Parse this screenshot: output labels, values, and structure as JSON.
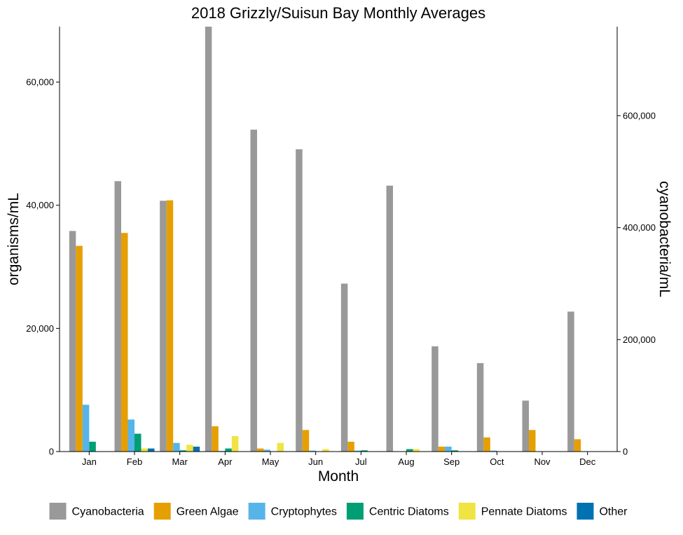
{
  "chart_data": {
    "type": "bar",
    "title": "2018 Grizzly/Suisun Bay Monthly Averages",
    "xlabel": "Month",
    "ylabel": "organisms/mL",
    "y2label": "cyanobacteria/mL",
    "ylim": [
      0,
      69000
    ],
    "y2lim": [
      0,
      759000
    ],
    "yticks": [
      0,
      20000,
      40000,
      60000
    ],
    "yticks_labels": [
      "0",
      "20,000",
      "40,000",
      "60,000"
    ],
    "y2ticks": [
      0,
      200000,
      400000,
      600000
    ],
    "y2ticks_labels": [
      "0",
      "200,000",
      "400,000",
      "600,000"
    ],
    "legend_position": "bottom",
    "grid": false,
    "categories": [
      "Jan",
      "Feb",
      "Mar",
      "Apr",
      "May",
      "Jun",
      "Jul",
      "Aug",
      "Sep",
      "Oct",
      "Nov",
      "Dec"
    ],
    "series": [
      {
        "name": "Cyanobacteria",
        "axis": "right",
        "color": "#999999",
        "values": [
          394000,
          483000,
          448000,
          760000,
          575000,
          540000,
          300000,
          475000,
          188000,
          158000,
          91000,
          250000
        ]
      },
      {
        "name": "Green Algae",
        "axis": "left",
        "color": "#E69F00",
        "values": [
          33400,
          35500,
          40800,
          4100,
          500,
          3500,
          1600,
          0,
          800,
          2300,
          3500,
          2000
        ]
      },
      {
        "name": "Cryptophytes",
        "axis": "left",
        "color": "#56B4E9",
        "values": [
          7600,
          5200,
          1400,
          100,
          300,
          150,
          150,
          0,
          800,
          150,
          0,
          0
        ]
      },
      {
        "name": "Centric Diatoms",
        "axis": "left",
        "color": "#009E73",
        "values": [
          1600,
          2900,
          200,
          500,
          0,
          0,
          200,
          400,
          200,
          0,
          0,
          0
        ]
      },
      {
        "name": "Pennate Diatoms",
        "axis": "left",
        "color": "#F0E442",
        "values": [
          0,
          500,
          1100,
          2500,
          1400,
          400,
          0,
          400,
          0,
          0,
          0,
          0
        ]
      },
      {
        "name": "Other",
        "axis": "left",
        "color": "#0072B2",
        "values": [
          0,
          500,
          800,
          0,
          0,
          0,
          0,
          0,
          0,
          0,
          0,
          0
        ]
      }
    ]
  }
}
